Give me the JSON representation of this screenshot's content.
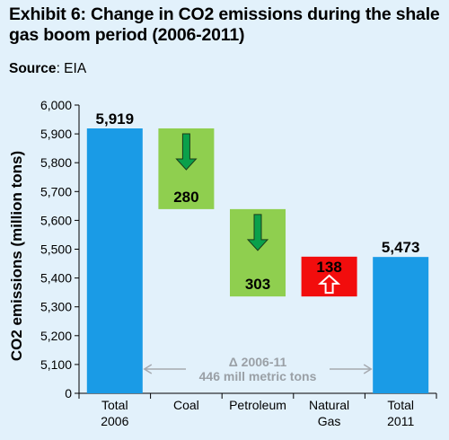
{
  "title": "Exhibit 6: Change in CO2 emissions during the shale gas boom period (2006-2011)",
  "source_label": "Source",
  "source_value": ": EIA",
  "chart_data": {
    "type": "bar",
    "subtype": "waterfall",
    "ylabel": "CO2 emissions (million tons)",
    "ylim": [
      0,
      6000
    ],
    "axis_break": [
      0,
      5000
    ],
    "yticks": [
      "0",
      "5,100",
      "5,200",
      "5,300",
      "5,400",
      "5,500",
      "5,600",
      "5,700",
      "5,800",
      "5,900",
      "6,000"
    ],
    "categories": [
      "Total\n2006",
      "Coal",
      "Petroleum",
      "Natural\nGas",
      "Total\n2011"
    ],
    "bars": [
      {
        "category": "Total 2006",
        "kind": "total",
        "value": 5919,
        "label": "5,919",
        "color": "#1a9be6"
      },
      {
        "category": "Coal",
        "kind": "decrease",
        "value": -280,
        "label": "280",
        "color": "#8fcf4f",
        "arrow": "down"
      },
      {
        "category": "Petroleum",
        "kind": "decrease",
        "value": -303,
        "label": "303",
        "color": "#8fcf4f",
        "arrow": "down"
      },
      {
        "category": "Natural Gas",
        "kind": "increase",
        "value": 138,
        "label": "138",
        "color": "#f20d0d",
        "arrow": "up"
      },
      {
        "category": "Total 2011",
        "kind": "total",
        "value": 5473,
        "label": "5,473",
        "color": "#1a9be6"
      }
    ],
    "annotation": {
      "line1": "Δ 2006-11",
      "line2": "446 mill metric tons"
    },
    "grid": false,
    "legend": "none"
  }
}
